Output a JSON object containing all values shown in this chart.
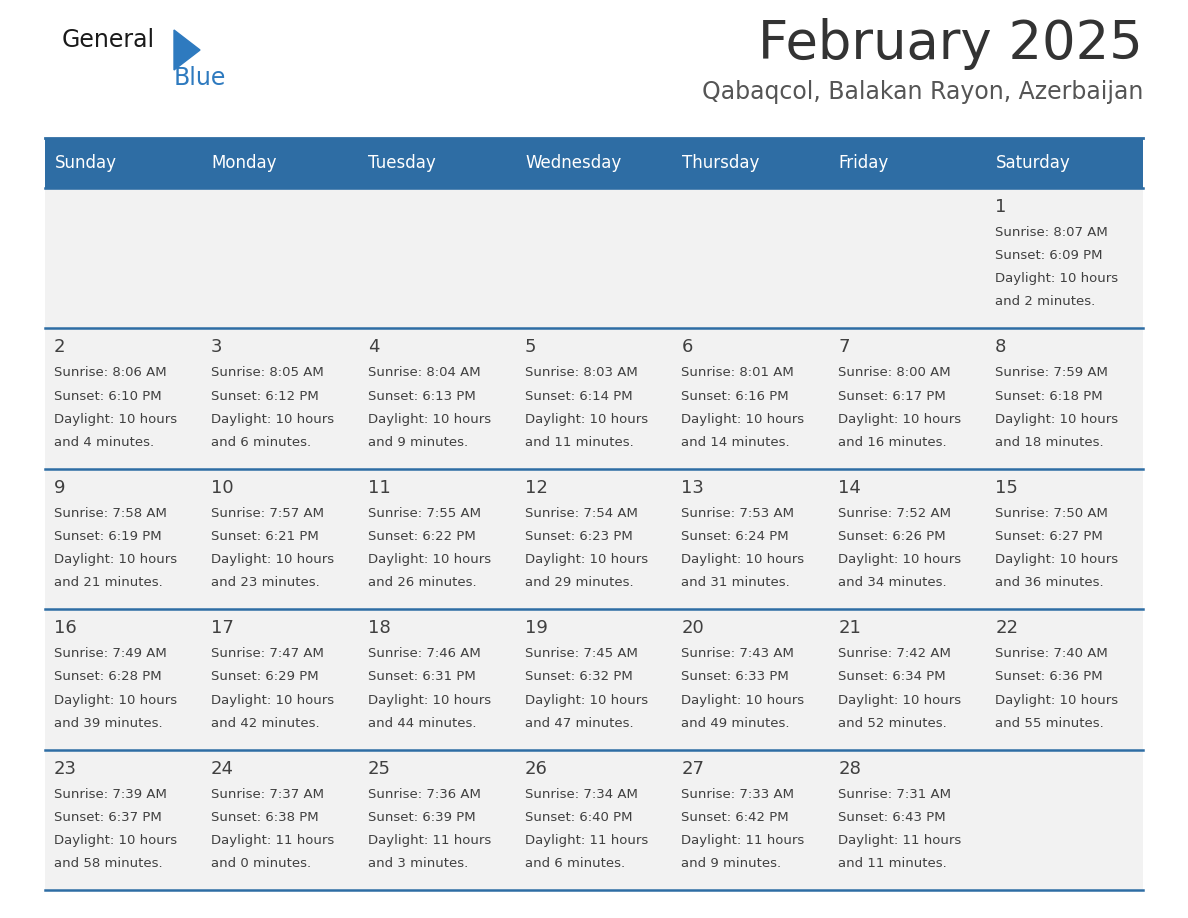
{
  "title": "February 2025",
  "subtitle": "Qabaqcol, Balakan Rayon, Azerbaijan",
  "header_bg": "#2e6da4",
  "header_text": "#ffffff",
  "cell_bg": "#f2f2f2",
  "border_color": "#2e6da4",
  "text_color": "#404040",
  "days_of_week": [
    "Sunday",
    "Monday",
    "Tuesday",
    "Wednesday",
    "Thursday",
    "Friday",
    "Saturday"
  ],
  "calendar_data": [
    [
      {
        "day": "",
        "sunrise": "",
        "sunset": "",
        "daylight": ""
      },
      {
        "day": "",
        "sunrise": "",
        "sunset": "",
        "daylight": ""
      },
      {
        "day": "",
        "sunrise": "",
        "sunset": "",
        "daylight": ""
      },
      {
        "day": "",
        "sunrise": "",
        "sunset": "",
        "daylight": ""
      },
      {
        "day": "",
        "sunrise": "",
        "sunset": "",
        "daylight": ""
      },
      {
        "day": "",
        "sunrise": "",
        "sunset": "",
        "daylight": ""
      },
      {
        "day": "1",
        "sunrise": "8:07 AM",
        "sunset": "6:09 PM",
        "daylight": "10 hours and 2 minutes."
      }
    ],
    [
      {
        "day": "2",
        "sunrise": "8:06 AM",
        "sunset": "6:10 PM",
        "daylight": "10 hours and 4 minutes."
      },
      {
        "day": "3",
        "sunrise": "8:05 AM",
        "sunset": "6:12 PM",
        "daylight": "10 hours and 6 minutes."
      },
      {
        "day": "4",
        "sunrise": "8:04 AM",
        "sunset": "6:13 PM",
        "daylight": "10 hours and 9 minutes."
      },
      {
        "day": "5",
        "sunrise": "8:03 AM",
        "sunset": "6:14 PM",
        "daylight": "10 hours and 11 minutes."
      },
      {
        "day": "6",
        "sunrise": "8:01 AM",
        "sunset": "6:16 PM",
        "daylight": "10 hours and 14 minutes."
      },
      {
        "day": "7",
        "sunrise": "8:00 AM",
        "sunset": "6:17 PM",
        "daylight": "10 hours and 16 minutes."
      },
      {
        "day": "8",
        "sunrise": "7:59 AM",
        "sunset": "6:18 PM",
        "daylight": "10 hours and 18 minutes."
      }
    ],
    [
      {
        "day": "9",
        "sunrise": "7:58 AM",
        "sunset": "6:19 PM",
        "daylight": "10 hours and 21 minutes."
      },
      {
        "day": "10",
        "sunrise": "7:57 AM",
        "sunset": "6:21 PM",
        "daylight": "10 hours and 23 minutes."
      },
      {
        "day": "11",
        "sunrise": "7:55 AM",
        "sunset": "6:22 PM",
        "daylight": "10 hours and 26 minutes."
      },
      {
        "day": "12",
        "sunrise": "7:54 AM",
        "sunset": "6:23 PM",
        "daylight": "10 hours and 29 minutes."
      },
      {
        "day": "13",
        "sunrise": "7:53 AM",
        "sunset": "6:24 PM",
        "daylight": "10 hours and 31 minutes."
      },
      {
        "day": "14",
        "sunrise": "7:52 AM",
        "sunset": "6:26 PM",
        "daylight": "10 hours and 34 minutes."
      },
      {
        "day": "15",
        "sunrise": "7:50 AM",
        "sunset": "6:27 PM",
        "daylight": "10 hours and 36 minutes."
      }
    ],
    [
      {
        "day": "16",
        "sunrise": "7:49 AM",
        "sunset": "6:28 PM",
        "daylight": "10 hours and 39 minutes."
      },
      {
        "day": "17",
        "sunrise": "7:47 AM",
        "sunset": "6:29 PM",
        "daylight": "10 hours and 42 minutes."
      },
      {
        "day": "18",
        "sunrise": "7:46 AM",
        "sunset": "6:31 PM",
        "daylight": "10 hours and 44 minutes."
      },
      {
        "day": "19",
        "sunrise": "7:45 AM",
        "sunset": "6:32 PM",
        "daylight": "10 hours and 47 minutes."
      },
      {
        "day": "20",
        "sunrise": "7:43 AM",
        "sunset": "6:33 PM",
        "daylight": "10 hours and 49 minutes."
      },
      {
        "day": "21",
        "sunrise": "7:42 AM",
        "sunset": "6:34 PM",
        "daylight": "10 hours and 52 minutes."
      },
      {
        "day": "22",
        "sunrise": "7:40 AM",
        "sunset": "6:36 PM",
        "daylight": "10 hours and 55 minutes."
      }
    ],
    [
      {
        "day": "23",
        "sunrise": "7:39 AM",
        "sunset": "6:37 PM",
        "daylight": "10 hours and 58 minutes."
      },
      {
        "day": "24",
        "sunrise": "7:37 AM",
        "sunset": "6:38 PM",
        "daylight": "11 hours and 0 minutes."
      },
      {
        "day": "25",
        "sunrise": "7:36 AM",
        "sunset": "6:39 PM",
        "daylight": "11 hours and 3 minutes."
      },
      {
        "day": "26",
        "sunrise": "7:34 AM",
        "sunset": "6:40 PM",
        "daylight": "11 hours and 6 minutes."
      },
      {
        "day": "27",
        "sunrise": "7:33 AM",
        "sunset": "6:42 PM",
        "daylight": "11 hours and 9 minutes."
      },
      {
        "day": "28",
        "sunrise": "7:31 AM",
        "sunset": "6:43 PM",
        "daylight": "11 hours and 11 minutes."
      },
      {
        "day": "",
        "sunrise": "",
        "sunset": "",
        "daylight": ""
      }
    ]
  ],
  "fig_width": 11.88,
  "fig_height": 9.18,
  "dpi": 100
}
